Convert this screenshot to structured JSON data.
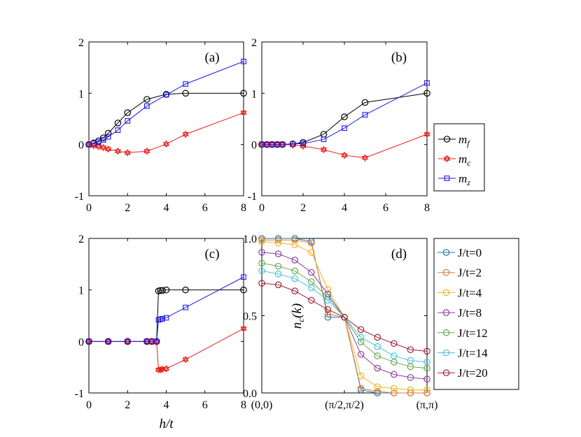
{
  "colors": {
    "mf": "#000000",
    "mc": "#e8201a",
    "mz": "#1a1ae8",
    "J0": "#1f77b4",
    "J2": "#e07b39",
    "J4": "#f0b323",
    "J8": "#8e3fa0",
    "J12": "#6aa84f",
    "J14": "#4cc3e0",
    "J20": "#a0223a"
  },
  "chart_data": [
    {
      "type": "line",
      "panel": "(a)",
      "xlim": [
        0,
        8
      ],
      "ylim": [
        -1,
        2
      ],
      "xticks": [
        0,
        2,
        4,
        6,
        8
      ],
      "yticks": [
        -1,
        0,
        1,
        2
      ],
      "xtick_labels": [
        "0",
        "2",
        "4",
        "6",
        "8"
      ],
      "ytick_labels": [
        "-1",
        "0",
        "1",
        "2"
      ],
      "series": [
        {
          "name": "m_f",
          "marker": "circle",
          "x": [
            0,
            0.25,
            0.5,
            0.75,
            1,
            1.5,
            2,
            3,
            4,
            5,
            8
          ],
          "y": [
            0,
            0.03,
            0.07,
            0.13,
            0.22,
            0.42,
            0.62,
            0.88,
            0.98,
            1.0,
            1.0
          ]
        },
        {
          "name": "m_c",
          "marker": "star",
          "x": [
            0,
            0.25,
            0.5,
            0.75,
            1,
            1.5,
            2,
            3,
            4,
            5,
            8
          ],
          "y": [
            0,
            -0.02,
            -0.04,
            -0.06,
            -0.09,
            -0.13,
            -0.16,
            -0.13,
            0.01,
            0.2,
            0.62
          ]
        },
        {
          "name": "m_z",
          "marker": "square",
          "x": [
            0,
            0.25,
            0.5,
            0.75,
            1,
            1.5,
            2,
            3,
            4,
            5,
            8
          ],
          "y": [
            0,
            0.02,
            0.05,
            0.09,
            0.15,
            0.28,
            0.46,
            0.75,
            0.97,
            1.18,
            1.62
          ]
        }
      ]
    },
    {
      "type": "line",
      "panel": "(b)",
      "xlim": [
        0,
        8
      ],
      "ylim": [
        -1,
        2
      ],
      "xticks": [
        0,
        2,
        4,
        6,
        8
      ],
      "yticks": [
        -1,
        0,
        1,
        2
      ],
      "xtick_labels": [
        "0",
        "2",
        "4",
        "6",
        "8"
      ],
      "ytick_labels": [
        "-1",
        "0",
        "1",
        "2"
      ],
      "series": [
        {
          "name": "m_f",
          "marker": "circle",
          "x": [
            0,
            0.25,
            0.5,
            0.75,
            1,
            1.5,
            2,
            3,
            4,
            5,
            8
          ],
          "y": [
            0,
            0,
            0,
            0,
            0,
            0.01,
            0.04,
            0.2,
            0.54,
            0.82,
            1.0
          ]
        },
        {
          "name": "m_c",
          "marker": "star",
          "x": [
            0,
            0.25,
            0.5,
            0.75,
            1,
            1.5,
            2,
            3,
            4,
            5,
            8
          ],
          "y": [
            0,
            0,
            0,
            0,
            0,
            -0.01,
            -0.03,
            -0.1,
            -0.21,
            -0.26,
            0.2
          ]
        },
        {
          "name": "m_z",
          "marker": "square",
          "x": [
            0,
            0.25,
            0.5,
            0.75,
            1,
            1.5,
            2,
            3,
            4,
            5,
            8
          ],
          "y": [
            0,
            0,
            0,
            0,
            0,
            0.01,
            0.02,
            0.1,
            0.32,
            0.58,
            1.2
          ]
        }
      ]
    },
    {
      "type": "line",
      "panel": "(c)",
      "xlabel": "h/t",
      "xlim": [
        0,
        8
      ],
      "ylim": [
        -1,
        2
      ],
      "xticks": [
        0,
        2,
        4,
        6,
        8
      ],
      "yticks": [
        -1,
        0,
        1,
        2
      ],
      "xtick_labels": [
        "0",
        "2",
        "4",
        "6",
        "8"
      ],
      "ytick_labels": [
        "-1",
        "0",
        "1",
        "2"
      ],
      "series": [
        {
          "name": "m_f",
          "marker": "circle",
          "x": [
            0,
            1,
            2,
            3,
            3.25,
            3.5,
            3.6,
            3.7,
            3.8,
            4,
            5,
            8
          ],
          "y": [
            0,
            0,
            0,
            0,
            0,
            0,
            0.98,
            0.99,
            0.99,
            1.0,
            1.0,
            1.0
          ]
        },
        {
          "name": "m_c",
          "marker": "star",
          "x": [
            0,
            1,
            2,
            3,
            3.25,
            3.5,
            3.6,
            3.7,
            3.8,
            4,
            5,
            8
          ],
          "y": [
            0,
            0,
            0,
            0,
            0,
            0,
            -0.55,
            -0.55,
            -0.54,
            -0.53,
            -0.35,
            0.25
          ]
        },
        {
          "name": "m_z",
          "marker": "square",
          "x": [
            0,
            1,
            2,
            3,
            3.25,
            3.5,
            3.6,
            3.7,
            3.8,
            4,
            5,
            8
          ],
          "y": [
            0,
            0,
            0,
            0,
            0,
            0,
            0.42,
            0.43,
            0.44,
            0.46,
            0.66,
            1.25
          ]
        }
      ]
    },
    {
      "type": "line",
      "panel": "(d)",
      "ylabel": "n_c(k)",
      "xlim": [
        0,
        10
      ],
      "ylim": [
        0,
        1
      ],
      "xticks": [
        0,
        5,
        10
      ],
      "yticks": [
        0,
        0.5,
        1
      ],
      "xtick_labels": [
        "(0,0)",
        "(π/2,π/2)",
        "(π,π)"
      ],
      "ytick_labels": [
        "0.0",
        "0.5",
        "1.0"
      ],
      "series": [
        {
          "name": "J/t=0",
          "marker": "circle",
          "x": [
            0,
            1,
            2,
            3,
            4,
            5,
            6,
            7,
            8,
            9,
            10
          ],
          "y": [
            1.0,
            1.0,
            1.0,
            0.98,
            0.49,
            0.49,
            0.02,
            0.0,
            0.0,
            0.0,
            0.0
          ]
        },
        {
          "name": "J/t=2",
          "marker": "circle",
          "x": [
            0,
            1,
            2,
            3,
            4,
            5,
            6,
            7,
            8,
            9,
            10
          ],
          "y": [
            0.99,
            0.99,
            0.99,
            0.97,
            0.51,
            0.49,
            0.03,
            0.01,
            0.0,
            0.0,
            0.0
          ]
        },
        {
          "name": "J/t=4",
          "marker": "circle",
          "x": [
            0,
            1,
            2,
            3,
            4,
            5,
            6,
            7,
            8,
            9,
            10
          ],
          "y": [
            0.98,
            0.97,
            0.96,
            0.91,
            0.67,
            0.49,
            0.11,
            0.04,
            0.03,
            0.02,
            0.02
          ]
        },
        {
          "name": "J/t=8",
          "marker": "circle",
          "x": [
            0,
            1,
            2,
            3,
            4,
            5,
            6,
            7,
            8,
            9,
            10
          ],
          "y": [
            0.91,
            0.9,
            0.86,
            0.78,
            0.64,
            0.49,
            0.25,
            0.16,
            0.12,
            0.1,
            0.09
          ]
        },
        {
          "name": "J/t=12",
          "marker": "circle",
          "x": [
            0,
            1,
            2,
            3,
            4,
            5,
            6,
            7,
            8,
            9,
            10
          ],
          "y": [
            0.84,
            0.82,
            0.79,
            0.72,
            0.62,
            0.49,
            0.33,
            0.24,
            0.2,
            0.17,
            0.16
          ]
        },
        {
          "name": "J/t=14",
          "marker": "circle",
          "x": [
            0,
            1,
            2,
            3,
            4,
            5,
            6,
            7,
            8,
            9,
            10
          ],
          "y": [
            0.79,
            0.77,
            0.74,
            0.68,
            0.6,
            0.49,
            0.36,
            0.3,
            0.24,
            0.21,
            0.2
          ]
        },
        {
          "name": "J/t=20",
          "marker": "circle",
          "x": [
            0,
            1,
            2,
            3,
            4,
            5,
            6,
            7,
            8,
            9,
            10
          ],
          "y": [
            0.71,
            0.7,
            0.66,
            0.6,
            0.54,
            0.49,
            0.41,
            0.36,
            0.32,
            0.28,
            0.27
          ]
        }
      ]
    }
  ],
  "legend_m": [
    {
      "base": "m",
      "sub": "f",
      "marker": "circle"
    },
    {
      "base": "m",
      "sub": "c",
      "marker": "star"
    },
    {
      "base": "m",
      "sub": "z",
      "marker": "square"
    }
  ]
}
